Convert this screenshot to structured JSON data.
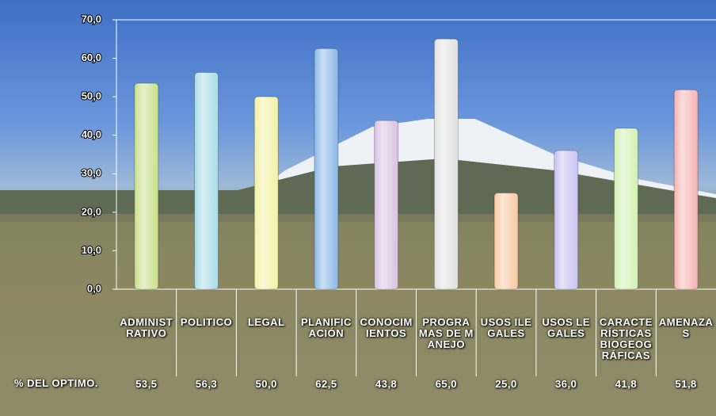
{
  "chart_data": {
    "type": "bar",
    "categories": [
      "ADMINISTRATIVO",
      "POLITICO",
      "LEGAL",
      "PLANIFICACIÓN",
      "CONOCIMIENTOS",
      "PROGRAMAS DE MANEJO",
      "USOS ILEGALES",
      "USOS LEGALES",
      "CARACTERÍSTICAS BIOGEOGRÁFICAS",
      "AMENAZAS"
    ],
    "series": [
      {
        "name": "% DEL OPTIMO.",
        "colors": [
          "#c9e18a",
          "#a9dde8",
          "#f2f2a4",
          "#8cb8e8",
          "#d9c2e2",
          "#e2e2e2",
          "#f9c9a1",
          "#c9c1f1",
          "#d2f1b2",
          "#f5b3b3"
        ],
        "values": [
          53.5,
          56.3,
          50.0,
          62.5,
          43.8,
          65.0,
          25.0,
          36.0,
          41.8,
          51.8
        ],
        "value_labels": [
          "53,5",
          "56,3",
          "50,0",
          "62,5",
          "43,8",
          "65,0",
          "25,0",
          "36,0",
          "41,8",
          "51,8"
        ]
      }
    ],
    "ylim": [
      0,
      70
    ],
    "yticks": [
      {
        "value": 0,
        "label": "0,0"
      },
      {
        "value": 10,
        "label": "10,0"
      },
      {
        "value": 20,
        "label": "20,0"
      },
      {
        "value": 30,
        "label": "30,0"
      },
      {
        "value": 40,
        "label": "40,0"
      },
      {
        "value": 50,
        "label": "50,0"
      },
      {
        "value": 60,
        "label": "60,0"
      },
      {
        "value": 70,
        "label": "70,0"
      }
    ],
    "grid": false
  }
}
